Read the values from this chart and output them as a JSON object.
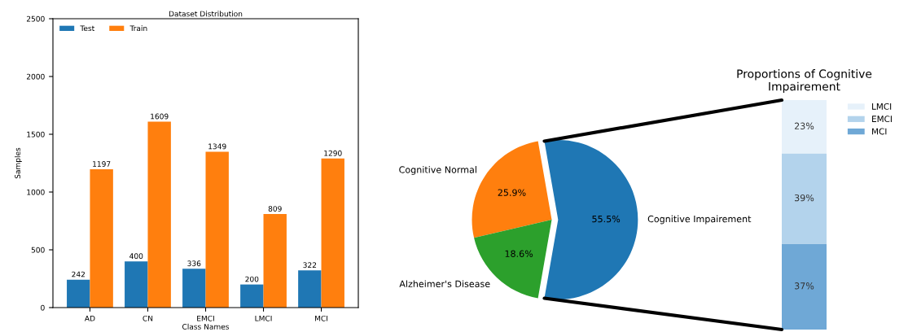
{
  "chart_data": [
    {
      "type": "bar",
      "title": "Dataset Distribution",
      "xlabel": "Class Names",
      "ylabel": "Samples",
      "categories": [
        "AD",
        "CN",
        "EMCI",
        "LMCI",
        "MCI"
      ],
      "series": [
        {
          "name": "Test",
          "color": "#1f77b4",
          "values": [
            242,
            400,
            336,
            200,
            322
          ]
        },
        {
          "name": "Train",
          "color": "#ff7f0e",
          "values": [
            1197,
            1609,
            1349,
            809,
            1290
          ]
        }
      ],
      "ylim": [
        0,
        2500
      ],
      "yticks": [
        0,
        500,
        1000,
        1500,
        2000,
        2500
      ],
      "data_labels": true,
      "legend": "top left",
      "grid": false
    },
    {
      "type": "pie",
      "categories": [
        "Cognitive Impairement",
        "Cognitive Normal",
        "Alzheimer's Disease"
      ],
      "values": [
        55.5,
        25.9,
        18.6
      ],
      "colors": [
        "#1f77b4",
        "#ff7f0e",
        "#2ca02c"
      ],
      "value_labels": [
        "55.5%",
        "25.9%",
        "18.6%"
      ]
    },
    {
      "type": "bar",
      "title": "Proportions of Cognitive Impairement",
      "categories": [
        null
      ],
      "stacked": true,
      "tick_labels": false,
      "legend": "top right",
      "series": [
        {
          "name": "MCI",
          "color": "#6fa8d6",
          "values": [
            37
          ],
          "value_labels": [
            "37%"
          ]
        },
        {
          "name": "EMCI",
          "color": "#b3d3ec",
          "values": [
            39
          ],
          "value_labels": [
            "39%"
          ]
        },
        {
          "name": "LMCI",
          "color": "#e6f1fa",
          "values": [
            23
          ],
          "value_labels": [
            "23%"
          ]
        }
      ]
    }
  ]
}
